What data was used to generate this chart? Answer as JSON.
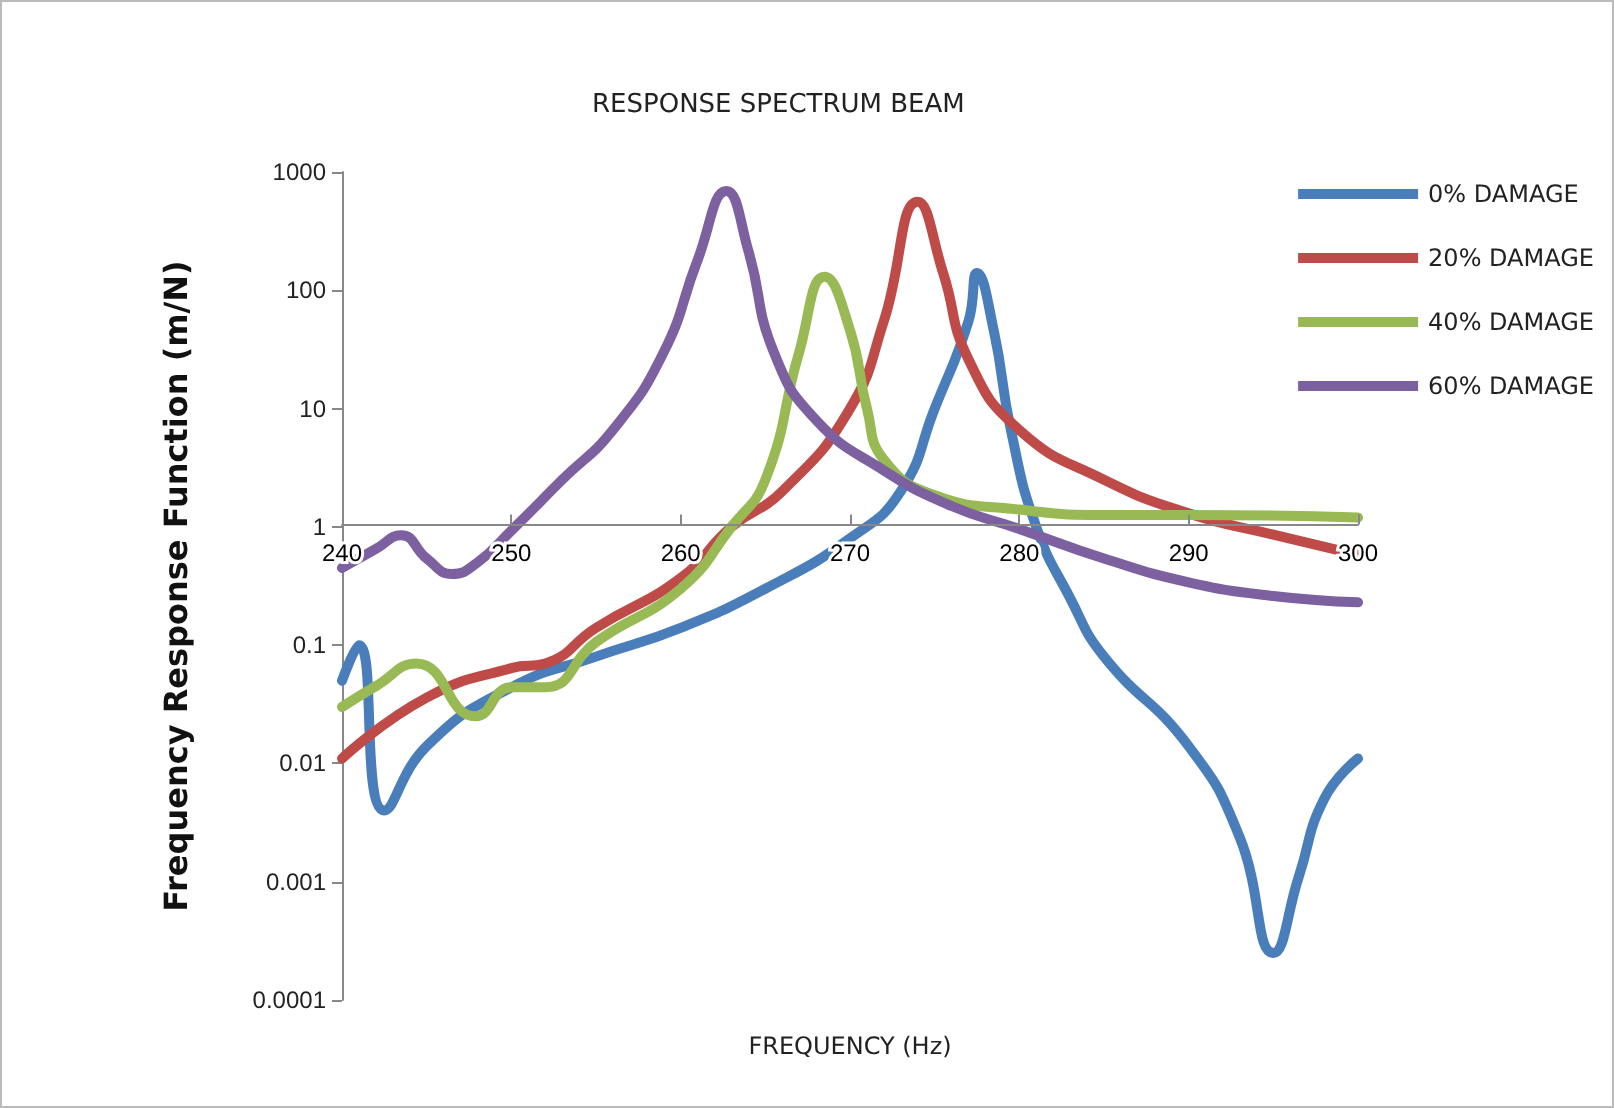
{
  "chart_data": {
    "type": "line",
    "title": "RESPONSE SPECTRUM BEAM",
    "xlabel": "FREQUENCY (Hz)",
    "ylabel": "Frequency Response Function (m/N)",
    "xlim": [
      240,
      300
    ],
    "xticks": [
      240,
      250,
      260,
      270,
      280,
      290,
      300
    ],
    "ylim": [
      0.0001,
      1000
    ],
    "yticks": [
      0.0001,
      0.001,
      0.01,
      0.1,
      1,
      10,
      100,
      1000
    ],
    "log": "y",
    "grid": false,
    "legend": "right",
    "marker": "none",
    "line_style": "solid",
    "series": [
      {
        "name": "0% DAMAGE",
        "color": "#4a7ebb",
        "x": [
          240,
          241,
          242.5,
          245,
          250,
          255,
          260,
          265,
          270,
          273,
          275,
          277,
          277.5,
          278.5,
          279.5,
          281,
          283,
          285,
          290,
          293,
          295,
          296.5,
          298,
          300
        ],
        "values": [
          0.05,
          0.1,
          0.004,
          0.014,
          0.044,
          0.08,
          0.14,
          0.3,
          0.8,
          2,
          10,
          55,
          140,
          45,
          6.6,
          1,
          0.25,
          0.08,
          0.014,
          0.0024,
          0.00025,
          0.0011,
          0.005,
          0.011
        ]
      },
      {
        "name": "20% DAMAGE",
        "color": "#be4b48",
        "x": [
          240,
          245,
          250,
          252,
          255,
          260,
          263,
          266,
          270,
          272,
          274,
          275.5,
          277,
          280,
          285,
          290,
          295,
          300
        ],
        "values": [
          0.011,
          0.036,
          0.064,
          0.07,
          0.14,
          0.37,
          1,
          2,
          10,
          55,
          560,
          140,
          26,
          6.6,
          2.5,
          1.3,
          0.86,
          0.58
        ]
      },
      {
        "name": "40% DAMAGE",
        "color": "#98b954",
        "x": [
          240,
          242,
          244.4,
          247.9,
          250,
          252,
          255,
          260,
          263,
          265,
          267,
          268.5,
          270,
          271,
          272,
          275,
          280,
          285,
          290,
          300
        ],
        "values": [
          0.03,
          0.045,
          0.07,
          0.025,
          0.044,
          0.044,
          0.106,
          0.3,
          1,
          2.5,
          30,
          130,
          46,
          10,
          3.7,
          1.85,
          1.4,
          1.26,
          1.26,
          1.2
        ]
      },
      {
        "name": "60% DAMAGE",
        "color": "#7d60a0",
        "x": [
          240,
          242,
          243.5,
          245,
          246.5,
          248,
          250,
          253,
          256,
          259,
          261,
          262.7,
          264,
          265.5,
          268,
          272,
          276,
          280,
          285,
          290,
          295,
          300
        ],
        "values": [
          0.45,
          0.65,
          0.85,
          0.54,
          0.4,
          0.5,
          0.93,
          2.5,
          6.6,
          30,
          180,
          690,
          215,
          30,
          8,
          3,
          1.5,
          0.96,
          0.54,
          0.34,
          0.26,
          0.23
        ]
      }
    ]
  }
}
